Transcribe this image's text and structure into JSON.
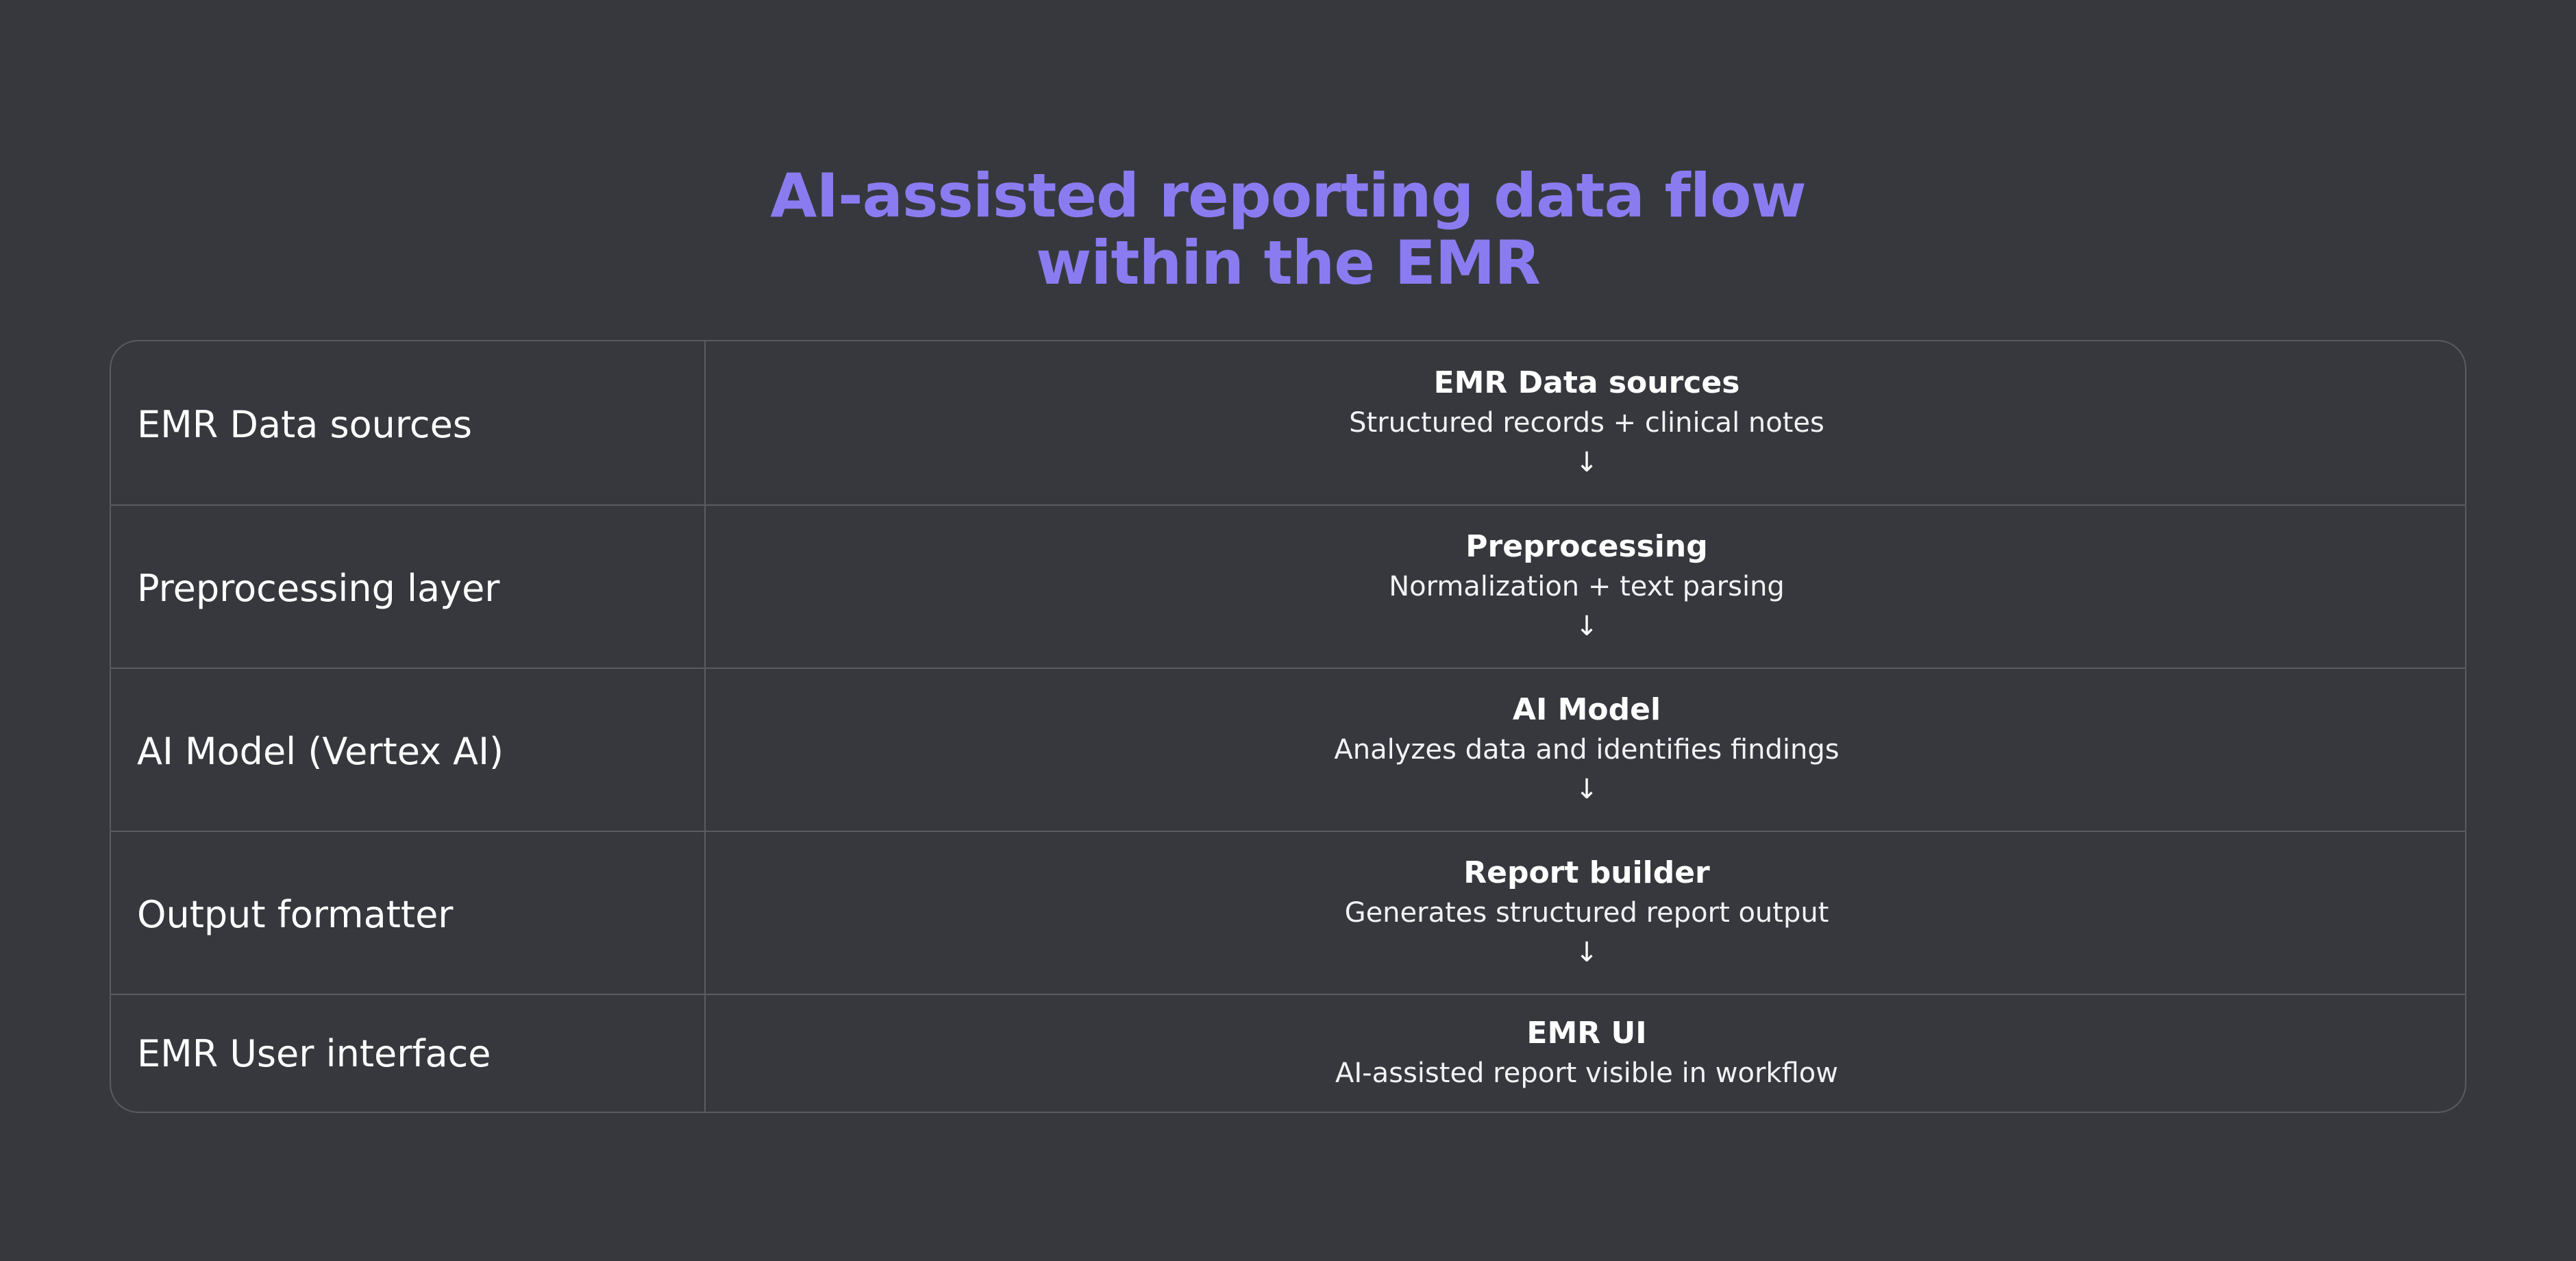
{
  "title": {
    "line1": "AI-assisted reporting data flow",
    "line2": "within the EMR"
  },
  "colors": {
    "background": "#37383e",
    "title": "#8a7cf0",
    "border": "#5a5b62",
    "text": "#ffffff"
  },
  "rows": [
    {
      "label": "EMR Data sources",
      "step_title": "EMR Data sources",
      "step_desc": "Structured records + clinical notes",
      "arrow": "↓"
    },
    {
      "label": "Preprocessing layer",
      "step_title": "Preprocessing",
      "step_desc": "Normalization + text parsing",
      "arrow": "↓"
    },
    {
      "label": "AI Model (Vertex AI)",
      "step_title": "AI Model",
      "step_desc": "Analyzes data and identifies findings",
      "arrow": "↓"
    },
    {
      "label": "Output formatter",
      "step_title": "Report builder",
      "step_desc": "Generates structured report output",
      "arrow": "↓"
    },
    {
      "label": "EMR User interface",
      "step_title": "EMR UI",
      "step_desc": "AI-assisted report visible in workflow"
    }
  ]
}
